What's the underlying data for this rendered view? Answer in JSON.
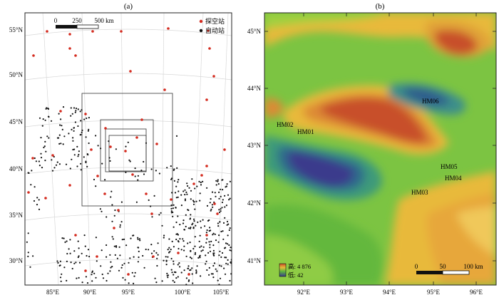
{
  "panel_a": {
    "label": "(a)",
    "legend": [
      {
        "label": "探空站",
        "color": "#d42a1e"
      },
      {
        "label": "自动站",
        "color": "#111111"
      }
    ],
    "scale": {
      "ticks": [
        "0",
        "250",
        "500 km"
      ]
    },
    "lat_labels": [
      "55°N",
      "50°N",
      "45°N",
      "40°N",
      "35°N",
      "30°N"
    ],
    "lon_labels": [
      "85°E",
      "90°E",
      "95°E",
      "100°E",
      "105°E"
    ]
  },
  "panel_b": {
    "label": "(b)",
    "stations": [
      "HM01",
      "HM02",
      "HM03",
      "HM04",
      "HM05",
      "HM06"
    ],
    "lat_labels": [
      "45°N",
      "44°N",
      "43°N",
      "42°N",
      "41°N"
    ],
    "lon_labels": [
      "92°E",
      "93°E",
      "94°E",
      "95°E",
      "96°E"
    ],
    "elevation_legend": {
      "high": "高: 4 876",
      "low": "低: 42"
    },
    "scale": {
      "ticks": [
        "0",
        "50",
        "100 km"
      ]
    },
    "colors": {
      "high": "#c8502a",
      "mid_high": "#e8b93a",
      "mid": "#5fb83c",
      "low": "#2e8b8a",
      "lowest": "#3a3a8c"
    }
  }
}
